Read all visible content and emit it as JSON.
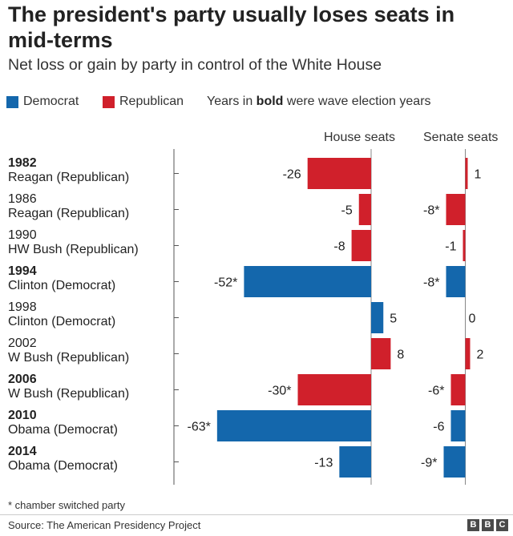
{
  "title": "The president's party usually loses seats in mid-terms",
  "subtitle": "Net loss or gain by party in control of the White House",
  "legend": {
    "democrat": "Democrat",
    "republican": "Republican",
    "note_prefix": "Years in ",
    "note_bold": "bold",
    "note_suffix": " were wave election years"
  },
  "colors": {
    "democrat": "#1467ac",
    "republican": "#d0202b"
  },
  "columns": {
    "house": "House seats",
    "senate": "Senate seats"
  },
  "footnote": "* chamber switched party",
  "source": "Source: The American Presidency Project",
  "brand": [
    "B",
    "B",
    "C"
  ],
  "chart_data": {
    "type": "bar",
    "categories": [
      "1982",
      "1986",
      "1990",
      "1994",
      "1998",
      "2002",
      "2006",
      "2010",
      "2014"
    ],
    "rows": [
      {
        "year": "1982",
        "president": "Reagan (Republican)",
        "party": "republican",
        "wave": true,
        "house": -26,
        "house_label": "-26",
        "senate": 1,
        "senate_label": "1"
      },
      {
        "year": "1986",
        "president": "Reagan (Republican)",
        "party": "republican",
        "wave": false,
        "house": -5,
        "house_label": "-5",
        "senate": -8,
        "senate_label": "-8*"
      },
      {
        "year": "1990",
        "president": "HW Bush (Republican)",
        "party": "republican",
        "wave": false,
        "house": -8,
        "house_label": "-8",
        "senate": -1,
        "senate_label": "-1"
      },
      {
        "year": "1994",
        "president": "Clinton (Democrat)",
        "party": "democrat",
        "wave": true,
        "house": -52,
        "house_label": "-52*",
        "senate": -8,
        "senate_label": "-8*"
      },
      {
        "year": "1998",
        "president": "Clinton (Democrat)",
        "party": "democrat",
        "wave": false,
        "house": 5,
        "house_label": "5",
        "senate": 0,
        "senate_label": "0"
      },
      {
        "year": "2002",
        "president": "W Bush (Republican)",
        "party": "republican",
        "wave": false,
        "house": 8,
        "house_label": "8",
        "senate": 2,
        "senate_label": "2"
      },
      {
        "year": "2006",
        "president": "W Bush (Republican)",
        "party": "republican",
        "wave": true,
        "house": -30,
        "house_label": "-30*",
        "senate": -6,
        "senate_label": "-6*"
      },
      {
        "year": "2010",
        "president": "Obama (Democrat)",
        "party": "democrat",
        "wave": true,
        "house": -63,
        "house_label": "-63*",
        "senate": -6,
        "senate_label": "-6"
      },
      {
        "year": "2014",
        "president": "Obama (Democrat)",
        "party": "democrat",
        "wave": true,
        "house": -13,
        "house_label": "-13",
        "senate": -9,
        "senate_label": "-9*"
      }
    ],
    "legend_position": "top"
  }
}
